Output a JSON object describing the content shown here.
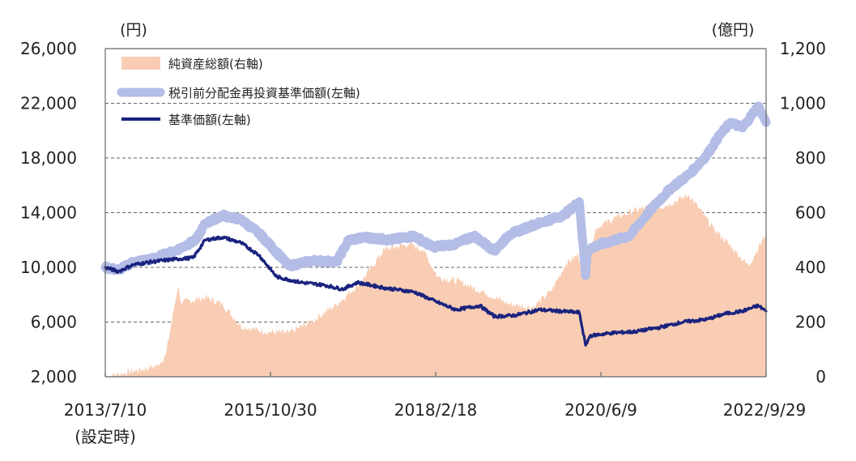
{
  "chart_data": {
    "type": "line",
    "left_axis": {
      "unit": "(円)",
      "range": [
        2000,
        26000
      ],
      "ticks": [
        "2,000",
        "6,000",
        "10,000",
        "14,000",
        "18,000",
        "22,000",
        "26,000"
      ],
      "tick_values": [
        2000,
        6000,
        10000,
        14000,
        18000,
        22000,
        26000
      ]
    },
    "right_axis": {
      "unit": "(億円)",
      "range": [
        0,
        1200
      ],
      "ticks": [
        "0",
        "200",
        "400",
        "600",
        "800",
        "1,000",
        "1,200"
      ],
      "tick_values": [
        0,
        200,
        400,
        600,
        800,
        1000,
        1200
      ]
    },
    "x_axis": {
      "start": "2013-07-10",
      "end": "2022-09-29",
      "ticks": [
        {
          "date": "2013-07-10",
          "label": "2013/7/10"
        },
        {
          "date": "2015-10-30",
          "label": "2015/10/30"
        },
        {
          "date": "2018-02-18",
          "label": "2018/2/18"
        },
        {
          "date": "2020-06-09",
          "label": "2020/6/9"
        },
        {
          "date": "2022-09-29",
          "label": "2022/9/29"
        }
      ],
      "start_note": "(設定時)"
    },
    "grid": "horizontal-dashed",
    "legend_position": "top-left",
    "colors": {
      "net_assets": "#f9cdb3",
      "nav_reinvested": "#b4bde6",
      "nav": "#1a237e"
    },
    "series": [
      {
        "name": "純資産総額(右軸)",
        "axis": "right",
        "kind": "area",
        "points": [
          [
            "2013-07-10",
            0
          ],
          [
            "2013-12-01",
            20
          ],
          [
            "2014-04-01",
            40
          ],
          [
            "2014-05-15",
            80
          ],
          [
            "2014-07-15",
            330
          ],
          [
            "2014-08-01",
            270
          ],
          [
            "2014-12-01",
            290
          ],
          [
            "2015-03-01",
            265
          ],
          [
            "2015-06-01",
            185
          ],
          [
            "2015-10-01",
            165
          ],
          [
            "2016-02-01",
            160
          ],
          [
            "2016-06-01",
            205
          ],
          [
            "2016-10-01",
            265
          ],
          [
            "2017-02-01",
            345
          ],
          [
            "2017-06-01",
            465
          ],
          [
            "2017-10-01",
            485
          ],
          [
            "2017-12-15",
            465
          ],
          [
            "2018-03-01",
            365
          ],
          [
            "2018-07-01",
            345
          ],
          [
            "2018-11-01",
            305
          ],
          [
            "2019-03-01",
            265
          ],
          [
            "2019-07-01",
            255
          ],
          [
            "2019-10-01",
            315
          ],
          [
            "2019-12-15",
            415
          ],
          [
            "2020-02-15",
            445
          ],
          [
            "2020-03-25",
            365
          ],
          [
            "2020-05-15",
            545
          ],
          [
            "2020-09-01",
            585
          ],
          [
            "2021-01-01",
            615
          ],
          [
            "2021-05-01",
            625
          ],
          [
            "2021-09-01",
            665
          ],
          [
            "2022-01-01",
            545
          ],
          [
            "2022-05-01",
            455
          ],
          [
            "2022-07-01",
            405
          ],
          [
            "2022-09-29",
            525
          ]
        ]
      },
      {
        "name": "税引前分配金再投資基準価額(左軸)",
        "axis": "left",
        "kind": "line",
        "points": [
          [
            "2013-07-10",
            10000
          ],
          [
            "2013-09-15",
            9800
          ],
          [
            "2013-12-01",
            10400
          ],
          [
            "2014-03-01",
            10600
          ],
          [
            "2014-07-01",
            11200
          ],
          [
            "2014-10-15",
            12000
          ],
          [
            "2014-12-01",
            13200
          ],
          [
            "2015-03-01",
            13800
          ],
          [
            "2015-06-01",
            13500
          ],
          [
            "2015-09-01",
            12500
          ],
          [
            "2015-10-30",
            11600
          ],
          [
            "2016-02-01",
            10100
          ],
          [
            "2016-06-01",
            10500
          ],
          [
            "2016-10-01",
            10400
          ],
          [
            "2016-12-01",
            12000
          ],
          [
            "2017-03-01",
            12200
          ],
          [
            "2017-07-01",
            12000
          ],
          [
            "2017-11-01",
            12300
          ],
          [
            "2018-02-01",
            11500
          ],
          [
            "2018-06-01",
            11700
          ],
          [
            "2018-09-01",
            12300
          ],
          [
            "2018-12-15",
            11200
          ],
          [
            "2019-03-01",
            12400
          ],
          [
            "2019-07-01",
            13100
          ],
          [
            "2019-12-01",
            13800
          ],
          [
            "2020-02-20",
            14800
          ],
          [
            "2020-03-23",
            9400
          ],
          [
            "2020-04-01",
            11300
          ],
          [
            "2020-07-01",
            11800
          ],
          [
            "2020-11-01",
            12300
          ],
          [
            "2021-03-01",
            14400
          ],
          [
            "2021-06-01",
            15800
          ],
          [
            "2021-09-01",
            16800
          ],
          [
            "2021-12-01",
            18200
          ],
          [
            "2022-02-01",
            19600
          ],
          [
            "2022-04-01",
            20600
          ],
          [
            "2022-06-01",
            20200
          ],
          [
            "2022-08-20",
            21800
          ],
          [
            "2022-09-29",
            20600
          ]
        ]
      },
      {
        "name": "基準価額(左軸)",
        "axis": "left",
        "kind": "line",
        "points": [
          [
            "2013-07-10",
            10000
          ],
          [
            "2013-09-15",
            9700
          ],
          [
            "2013-12-01",
            10200
          ],
          [
            "2014-03-01",
            10400
          ],
          [
            "2014-07-01",
            10600
          ],
          [
            "2014-10-01",
            10700
          ],
          [
            "2014-12-01",
            12000
          ],
          [
            "2015-03-01",
            12200
          ],
          [
            "2015-06-01",
            11800
          ],
          [
            "2015-09-01",
            10900
          ],
          [
            "2015-12-01",
            9300
          ],
          [
            "2016-04-01",
            8900
          ],
          [
            "2016-08-01",
            8700
          ],
          [
            "2016-11-01",
            8400
          ],
          [
            "2017-01-15",
            8900
          ],
          [
            "2017-06-01",
            8500
          ],
          [
            "2017-11-01",
            8200
          ],
          [
            "2018-02-18",
            7500
          ],
          [
            "2018-06-01",
            6900
          ],
          [
            "2018-10-01",
            7200
          ],
          [
            "2018-12-15",
            6400
          ],
          [
            "2019-04-01",
            6500
          ],
          [
            "2019-08-01",
            6900
          ],
          [
            "2020-02-20",
            6700
          ],
          [
            "2020-03-23",
            4300
          ],
          [
            "2020-04-15",
            5000
          ],
          [
            "2020-08-01",
            5200
          ],
          [
            "2020-12-01",
            5300
          ],
          [
            "2021-04-01",
            5600
          ],
          [
            "2021-08-01",
            6000
          ],
          [
            "2021-12-01",
            6200
          ],
          [
            "2022-03-01",
            6600
          ],
          [
            "2022-06-01",
            6800
          ],
          [
            "2022-08-20",
            7200
          ],
          [
            "2022-09-29",
            6800
          ]
        ]
      }
    ]
  }
}
